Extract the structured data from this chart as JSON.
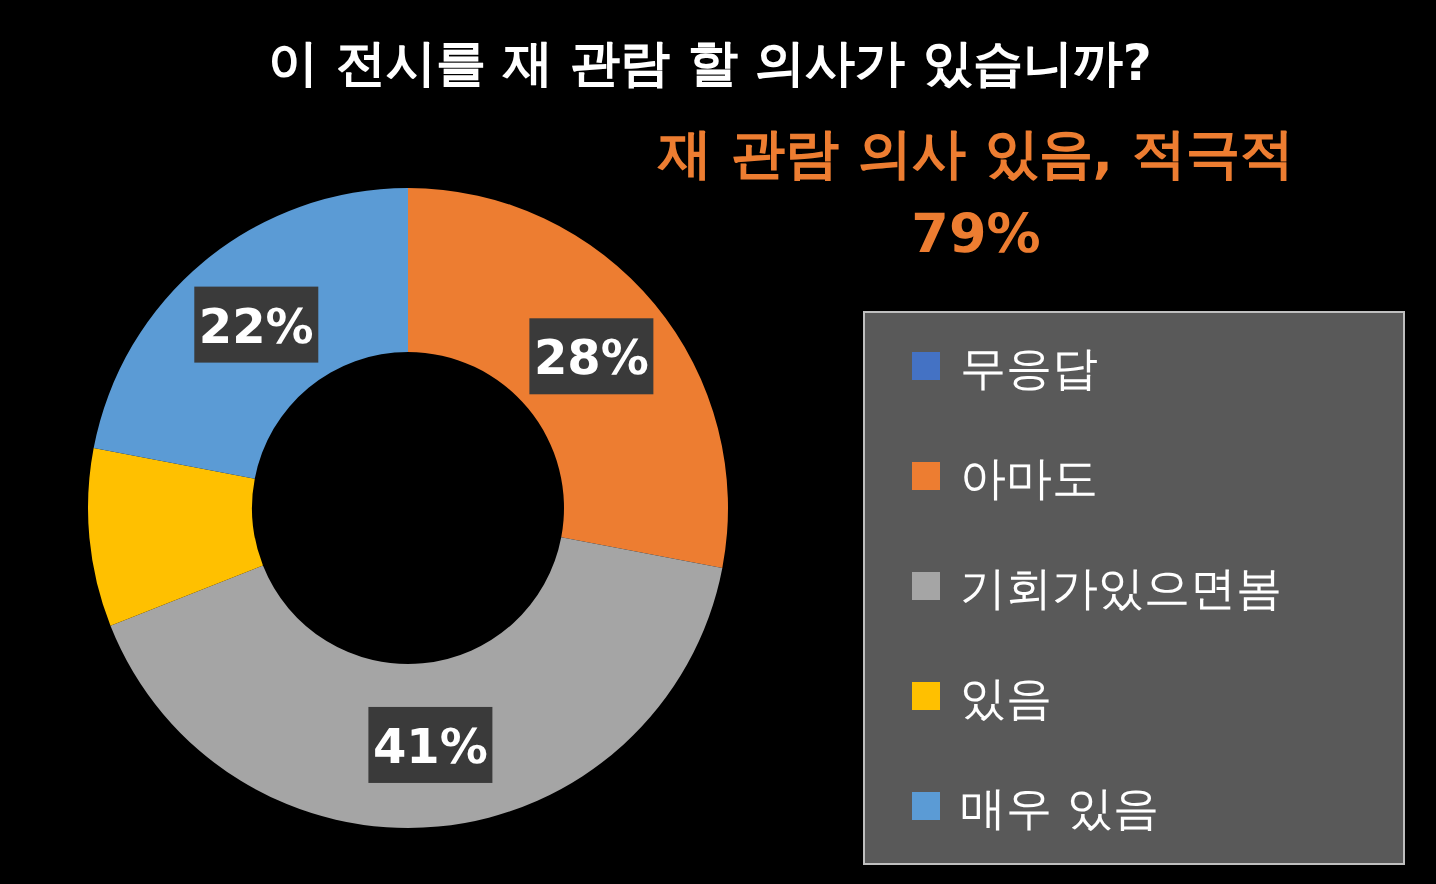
{
  "chart_data": {
    "type": "donut",
    "title": "이 전시를 재 관람 할 의사가 있습니까?",
    "annotations": [
      "재 관람 의사 있음, 적극적",
      "79%"
    ],
    "categories": [
      "무응답",
      "아마도",
      "기회가있으면봄",
      "있음",
      "매우 있음"
    ],
    "values": [
      0,
      28,
      41,
      9,
      22
    ],
    "colors": [
      "#4472c4",
      "#ed7d31",
      "#a5a5a5",
      "#ffc000",
      "#5b9bd5"
    ],
    "value_labels": [
      null,
      "28%",
      "41%",
      null,
      "22%"
    ],
    "legend": "right"
  }
}
